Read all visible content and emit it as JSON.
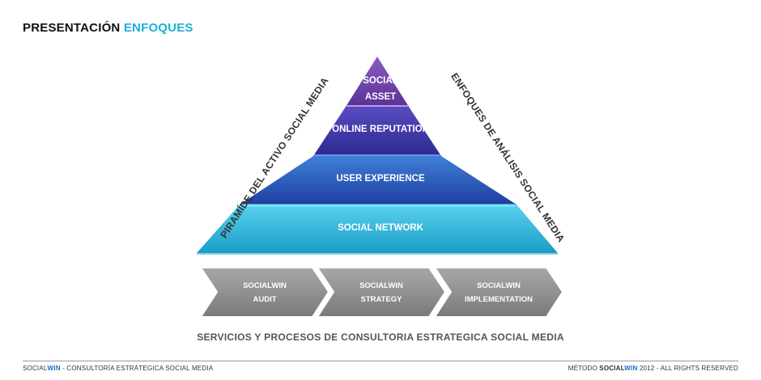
{
  "header": {
    "title_part1": "PRESENTACIÓN",
    "title_part2": "ENFOQUES"
  },
  "pyramid": {
    "levels": [
      {
        "line1": "SOCIAL",
        "line2": "ASSET"
      },
      {
        "label": "ONLINE REPUTATION"
      },
      {
        "label": "USER EXPERIENCE"
      },
      {
        "label": "SOCIAL NETWORK"
      }
    ],
    "left_side_label": "PIRAMÍDE DEL ACTIVO  SOCIAL MEDIA",
    "right_side_label": "ENFOQUES DE ANÁLISIS SOCIAL MEDIA",
    "colors": {
      "top": "#6a3fa8",
      "second": "#3d3aa8",
      "third": "#2c5fc0",
      "base": "#2fb8d8"
    }
  },
  "services": {
    "steps": [
      {
        "line1": "SOCIALWIN",
        "line2": "AUDIT"
      },
      {
        "line1": "SOCIALWIN",
        "line2": "STRATEGY"
      },
      {
        "line1": "SOCIALWIN",
        "line2": "IMPLEMENTATION"
      }
    ],
    "caption": "SERVICIOS  Y PROCESOS DE CONSULTORIA ESTRATEGICA SOCIAL MEDIA"
  },
  "footer": {
    "left_social": "SOCIAL",
    "left_win": "WIN",
    "left_rest": " - CONSULTORÍA ESTRÁTEGICA SOCIAL MEDIA",
    "right_pre": "MÉTODO ",
    "right_social": "SOCIAL",
    "right_win": "WIN",
    "right_rest": " 2012 - ALL RIGHTS RESERVED"
  }
}
